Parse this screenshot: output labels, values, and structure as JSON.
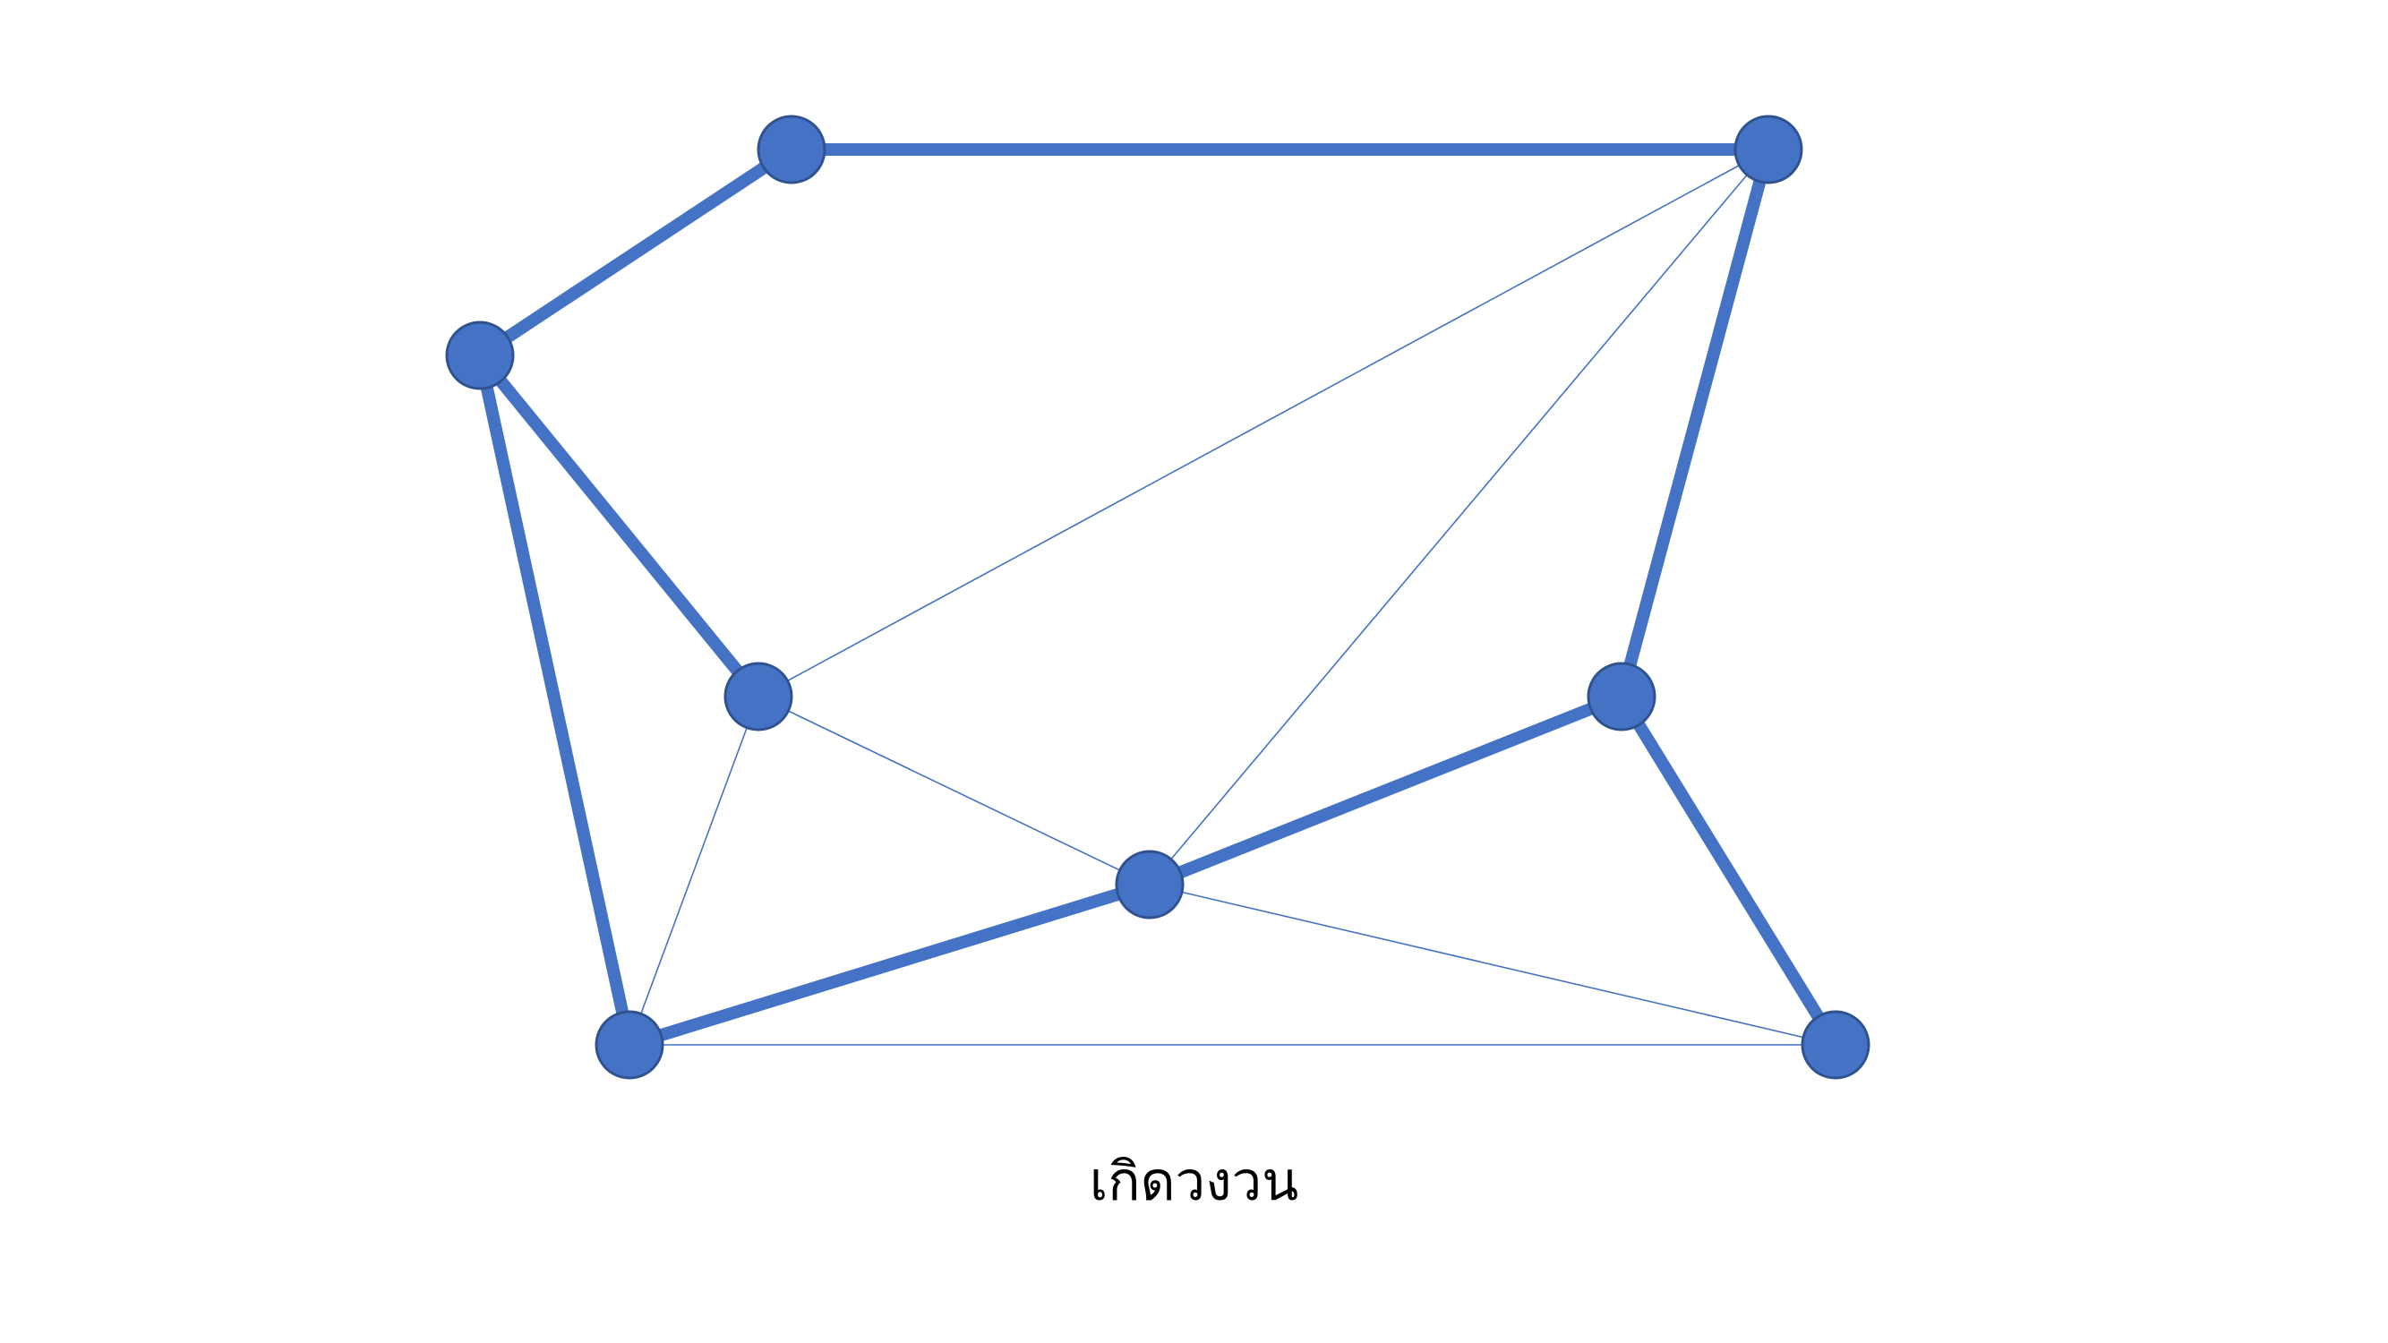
{
  "caption": "เกิดวงวน",
  "colors": {
    "edge": "#4472C4",
    "node_fill": "#4472C4",
    "node_stroke": "#2F528F",
    "caption": "#000000"
  },
  "graph": {
    "nodes": [
      "top-left",
      "top-right",
      "left",
      "mid-left",
      "right",
      "center",
      "bottom-left",
      "bottom-right"
    ],
    "edges": [
      {
        "from": "top-left",
        "to": "top-right",
        "style": "thick"
      },
      {
        "from": "left",
        "to": "top-left",
        "style": "thick"
      },
      {
        "from": "left",
        "to": "mid-left",
        "style": "thick"
      },
      {
        "from": "left",
        "to": "bottom-left",
        "style": "thick"
      },
      {
        "from": "top-right",
        "to": "right",
        "style": "thick"
      },
      {
        "from": "right",
        "to": "center",
        "style": "thick"
      },
      {
        "from": "right",
        "to": "bottom-right",
        "style": "thick"
      },
      {
        "from": "center",
        "to": "bottom-left",
        "style": "thick"
      },
      {
        "from": "mid-left",
        "to": "top-right",
        "style": "thin"
      },
      {
        "from": "center",
        "to": "top-right",
        "style": "thin"
      },
      {
        "from": "mid-left",
        "to": "center",
        "style": "thin"
      },
      {
        "from": "mid-left",
        "to": "bottom-left",
        "style": "thin"
      },
      {
        "from": "center",
        "to": "bottom-right",
        "style": "thin"
      },
      {
        "from": "bottom-left",
        "to": "bottom-right",
        "style": "thin"
      }
    ]
  }
}
